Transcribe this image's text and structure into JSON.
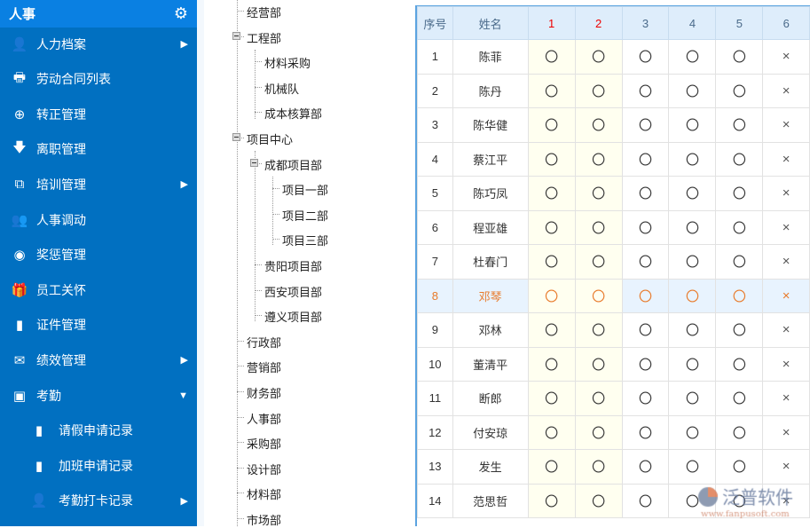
{
  "sidebar": {
    "title": "人事",
    "settings_icon": "gear-icon",
    "items": [
      {
        "label": "人力档案",
        "icon": "user-plus-icon",
        "arrow": "▶"
      },
      {
        "label": "劳动合同列表",
        "icon": "printer-icon",
        "arrow": ""
      },
      {
        "label": "转正管理",
        "icon": "plus-circle-icon",
        "arrow": ""
      },
      {
        "label": "离职管理",
        "icon": "arrow-down-icon",
        "arrow": ""
      },
      {
        "label": "培训管理",
        "icon": "copy-icon",
        "arrow": "▶"
      },
      {
        "label": "人事调动",
        "icon": "users-icon",
        "arrow": ""
      },
      {
        "label": "奖惩管理",
        "icon": "user-circle-icon",
        "arrow": ""
      },
      {
        "label": "员工关怀",
        "icon": "gift-icon",
        "arrow": ""
      },
      {
        "label": "证件管理",
        "icon": "file-icon",
        "arrow": ""
      },
      {
        "label": "绩效管理",
        "icon": "envelope-open-icon",
        "arrow": "▶"
      },
      {
        "label": "考勤",
        "icon": "contact-card-icon",
        "arrow": "▼"
      },
      {
        "label": "请假申请记录",
        "icon": "file-icon",
        "arrow": "",
        "sub": true
      },
      {
        "label": "加班申请记录",
        "icon": "file-icon",
        "arrow": "",
        "sub": true
      },
      {
        "label": "考勤打卡记录",
        "icon": "user-icon",
        "arrow": "▶",
        "sub": true
      }
    ]
  },
  "tree": [
    {
      "label": "经营部",
      "level": 1
    },
    {
      "label": "工程部",
      "level": 1,
      "expanded": true
    },
    {
      "label": "材料采购",
      "level": 2
    },
    {
      "label": "机械队",
      "level": 2
    },
    {
      "label": "成本核算部",
      "level": 2
    },
    {
      "label": "项目中心",
      "level": 1,
      "expanded": true
    },
    {
      "label": "成都项目部",
      "level": 2,
      "expanded": true
    },
    {
      "label": "项目一部",
      "level": 3
    },
    {
      "label": "项目二部",
      "level": 3
    },
    {
      "label": "项目三部",
      "level": 3
    },
    {
      "label": "贵阳项目部",
      "level": 2
    },
    {
      "label": "西安项目部",
      "level": 2
    },
    {
      "label": "遵义项目部",
      "level": 2
    },
    {
      "label": "行政部",
      "level": 1
    },
    {
      "label": "营销部",
      "level": 1
    },
    {
      "label": "财务部",
      "level": 1
    },
    {
      "label": "人事部",
      "level": 1
    },
    {
      "label": "采购部",
      "level": 1
    },
    {
      "label": "设计部",
      "level": 1
    },
    {
      "label": "材料部",
      "level": 1
    },
    {
      "label": "市场部",
      "level": 1
    }
  ],
  "grid": {
    "headers": [
      "序号",
      "姓名",
      "1",
      "2",
      "3",
      "4",
      "5",
      "6"
    ],
    "weekend_columns": [
      "1",
      "2"
    ],
    "selected_row": "8",
    "rows": [
      [
        "1",
        "陈菲",
        "〇",
        "〇",
        "〇",
        "〇",
        "〇",
        "×"
      ],
      [
        "2",
        "陈丹",
        "〇",
        "〇",
        "〇",
        "〇",
        "〇",
        "×"
      ],
      [
        "3",
        "陈华健",
        "〇",
        "〇",
        "〇",
        "〇",
        "〇",
        "×"
      ],
      [
        "4",
        "蔡江平",
        "〇",
        "〇",
        "〇",
        "〇",
        "〇",
        "×"
      ],
      [
        "5",
        "陈巧凤",
        "〇",
        "〇",
        "〇",
        "〇",
        "〇",
        "×"
      ],
      [
        "6",
        "程亚雄",
        "〇",
        "〇",
        "〇",
        "〇",
        "〇",
        "×"
      ],
      [
        "7",
        "杜春门",
        "〇",
        "〇",
        "〇",
        "〇",
        "〇",
        "×"
      ],
      [
        "8",
        "邓琴",
        "〇",
        "〇",
        "〇",
        "〇",
        "〇",
        "×"
      ],
      [
        "9",
        "邓林",
        "〇",
        "〇",
        "〇",
        "〇",
        "〇",
        "×"
      ],
      [
        "10",
        "董清平",
        "〇",
        "〇",
        "〇",
        "〇",
        "〇",
        "×"
      ],
      [
        "11",
        "断郎",
        "〇",
        "〇",
        "〇",
        "〇",
        "〇",
        "×"
      ],
      [
        "12",
        "付安琼",
        "〇",
        "〇",
        "〇",
        "〇",
        "〇",
        "×"
      ],
      [
        "13",
        "发生",
        "〇",
        "〇",
        "〇",
        "〇",
        "〇",
        "×"
      ],
      [
        "14",
        "范思哲",
        "〇",
        "〇",
        "〇",
        "〇",
        "〇",
        "×"
      ]
    ]
  },
  "watermark": {
    "name": "泛普软件",
    "url": "www.fanpusoft.com"
  },
  "colors": {
    "sidebar": "#0170c1",
    "sidebar_header": "#0a80e2",
    "grid_header": "#deedfb",
    "weekend": "#fffff0",
    "selected_row": "#e8f3fe",
    "selected_text": "#e87a2a"
  }
}
